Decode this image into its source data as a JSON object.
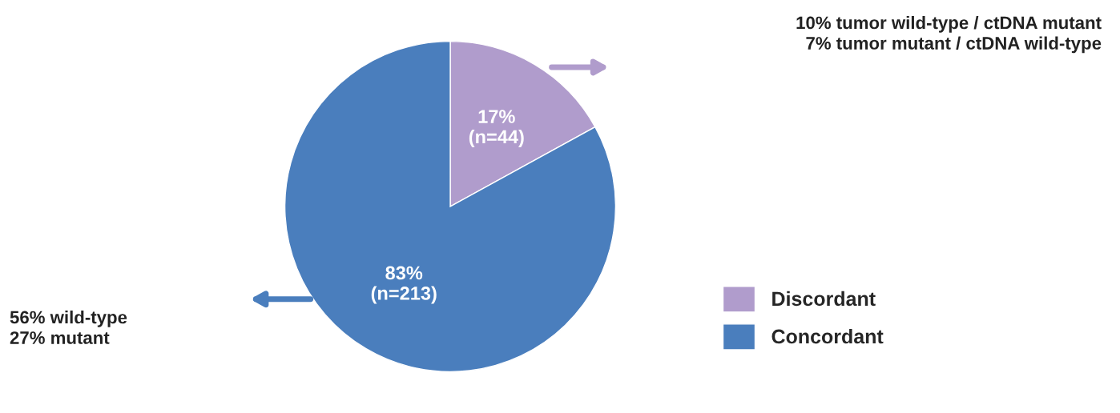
{
  "chart_data": {
    "type": "pie",
    "categories": [
      "Discordant",
      "Concordant"
    ],
    "values": [
      17,
      83
    ],
    "colors": [
      "#b09ccc",
      "#4a7ebd"
    ],
    "value_labels": [
      "17%\n(n=44)",
      "83%\n(n=213)"
    ],
    "annotations": [
      "10% tumor wild-type / ctDNA mutant\n7% tumor mutant / ctDNA wild-type",
      "56% wild-type\n27% mutant"
    ],
    "legend": "right"
  }
}
